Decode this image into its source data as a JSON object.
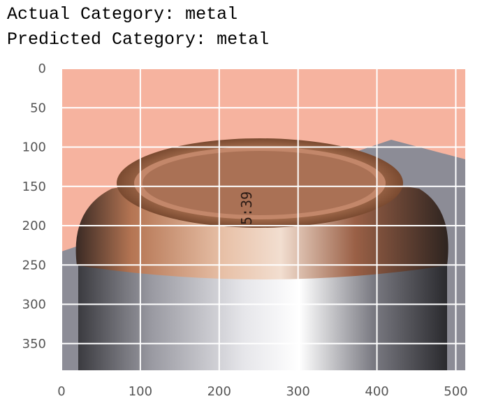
{
  "output": {
    "actual_label": "Actual Category:",
    "actual_value": "metal",
    "predicted_label": "Predicted Category:",
    "predicted_value": "metal"
  },
  "chart_data": {
    "type": "image",
    "title": "",
    "xlabel": "",
    "ylabel": "",
    "xlim": [
      0,
      512
    ],
    "ylim": [
      384,
      0
    ],
    "x_ticks": [
      0,
      100,
      200,
      300,
      400,
      500
    ],
    "y_ticks": [
      0,
      50,
      100,
      150,
      200,
      250,
      300,
      350
    ],
    "grid": true,
    "image_subject": "top of an aluminum beverage can against a salmon-pink background",
    "image_text": "5:39"
  },
  "colors": {
    "background": "#f6b39f",
    "grid": "#ffffff",
    "tick_text": "#555555"
  }
}
